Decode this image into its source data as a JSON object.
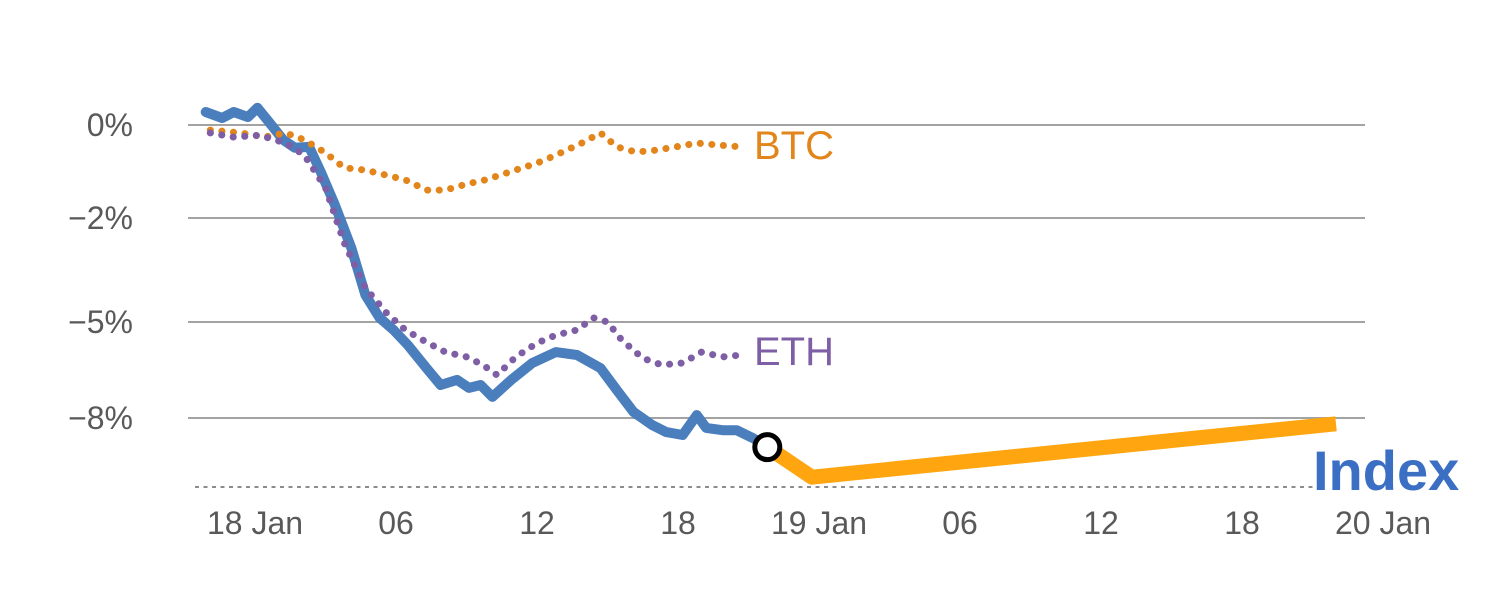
{
  "chart_data": {
    "type": "line",
    "title": "",
    "xlabel": "",
    "ylabel": "",
    "grid": true,
    "legend_position": "inline-labels",
    "x_unit": "hours since 18 Jan 00:00",
    "xlim": [
      -2.9,
      49
    ],
    "ylim_pct": [
      -10.3,
      0.9
    ],
    "y_scale_note": "non-linear: gridlines at 0, -2, -5, -8 percent are roughly equally spaced",
    "xticks": [
      {
        "t": 0,
        "label": "18 Jan"
      },
      {
        "t": 6,
        "label": "06"
      },
      {
        "t": 12,
        "label": "12"
      },
      {
        "t": 18,
        "label": "18"
      },
      {
        "t": 24,
        "label": "19 Jan"
      },
      {
        "t": 30,
        "label": "06"
      },
      {
        "t": 36,
        "label": "12"
      },
      {
        "t": 42,
        "label": "18"
      },
      {
        "t": 48,
        "label": "20 Jan"
      }
    ],
    "yticks": [
      {
        "pct": 0,
        "label": "0%"
      },
      {
        "pct": -2,
        "label": "−2%"
      },
      {
        "pct": -5,
        "label": "−5%"
      },
      {
        "pct": -8,
        "label": "−8%"
      }
    ],
    "series": [
      {
        "name": "Index",
        "label": "Index",
        "color": "#4a7ebc",
        "dash": "solid",
        "width": 10,
        "points": [
          [
            -2.1,
            0.28
          ],
          [
            -1.4,
            0.15
          ],
          [
            -0.9,
            0.28
          ],
          [
            -0.3,
            0.17
          ],
          [
            0.1,
            0.37
          ],
          [
            0.6,
            0.06
          ],
          [
            1.2,
            -0.32
          ],
          [
            1.7,
            -0.49
          ],
          [
            2.3,
            -0.47
          ],
          [
            2.8,
            -1.01
          ],
          [
            3.4,
            -1.72
          ],
          [
            4.1,
            -2.87
          ],
          [
            4.7,
            -4.22
          ],
          [
            5.3,
            -4.88
          ],
          [
            5.9,
            -5.25
          ],
          [
            6.5,
            -5.72
          ],
          [
            7.3,
            -6.44
          ],
          [
            7.9,
            -6.97
          ],
          [
            8.6,
            -6.81
          ],
          [
            9.1,
            -7.06
          ],
          [
            9.6,
            -6.97
          ],
          [
            10.1,
            -7.34
          ],
          [
            10.9,
            -6.81
          ],
          [
            11.8,
            -6.28
          ],
          [
            12.8,
            -5.94
          ],
          [
            13.7,
            -6.03
          ],
          [
            14.7,
            -6.44
          ],
          [
            15.4,
            -7.13
          ],
          [
            16.1,
            -7.81
          ],
          [
            16.9,
            -8.22
          ],
          [
            17.5,
            -8.44
          ],
          [
            18.2,
            -8.53
          ],
          [
            18.8,
            -7.91
          ],
          [
            19.2,
            -8.31
          ],
          [
            19.9,
            -8.38
          ],
          [
            20.5,
            -8.38
          ],
          [
            21.2,
            -8.63
          ],
          [
            21.8,
            -8.91
          ]
        ]
      },
      {
        "name": "Index projection",
        "label": "",
        "color": "#ffa50f",
        "dash": "solid",
        "width": 15,
        "cap": "butt",
        "points": [
          [
            21.8,
            -8.91
          ],
          [
            23.7,
            -9.85
          ],
          [
            46.0,
            -8.18
          ]
        ]
      },
      {
        "name": "BTC",
        "label": "BTC",
        "color": "#e2851b",
        "dash": "dotted",
        "width": 7,
        "points": [
          [
            -1.9,
            -0.11
          ],
          [
            -0.6,
            -0.17
          ],
          [
            0.4,
            -0.26
          ],
          [
            1.3,
            -0.17
          ],
          [
            2.1,
            -0.32
          ],
          [
            3.0,
            -0.6
          ],
          [
            3.8,
            -0.92
          ],
          [
            4.7,
            -0.97
          ],
          [
            5.6,
            -1.08
          ],
          [
            6.4,
            -1.18
          ],
          [
            7.3,
            -1.4
          ],
          [
            8.1,
            -1.4
          ],
          [
            9.0,
            -1.27
          ],
          [
            9.8,
            -1.18
          ],
          [
            10.9,
            -1.0
          ],
          [
            12.0,
            -0.82
          ],
          [
            12.8,
            -0.65
          ],
          [
            13.9,
            -0.39
          ],
          [
            14.7,
            -0.17
          ],
          [
            15.4,
            -0.47
          ],
          [
            16.2,
            -0.58
          ],
          [
            17.1,
            -0.54
          ],
          [
            17.9,
            -0.47
          ],
          [
            18.8,
            -0.39
          ],
          [
            19.7,
            -0.43
          ],
          [
            20.7,
            -0.47
          ]
        ]
      },
      {
        "name": "ETH",
        "label": "ETH",
        "color": "#7e5fa5",
        "dash": "dotted",
        "width": 7,
        "points": [
          [
            -1.9,
            -0.17
          ],
          [
            -0.9,
            -0.26
          ],
          [
            0.2,
            -0.22
          ],
          [
            1.3,
            -0.39
          ],
          [
            2.1,
            -0.65
          ],
          [
            3.0,
            -1.35
          ],
          [
            3.8,
            -2.72
          ],
          [
            4.7,
            -4.02
          ],
          [
            5.6,
            -4.74
          ],
          [
            6.4,
            -5.25
          ],
          [
            7.3,
            -5.63
          ],
          [
            8.1,
            -5.94
          ],
          [
            9.0,
            -6.09
          ],
          [
            9.7,
            -6.34
          ],
          [
            10.3,
            -6.66
          ],
          [
            11.1,
            -6.09
          ],
          [
            12.0,
            -5.66
          ],
          [
            12.8,
            -5.41
          ],
          [
            13.7,
            -5.25
          ],
          [
            14.4,
            -4.88
          ],
          [
            15.0,
            -5.0
          ],
          [
            15.6,
            -5.56
          ],
          [
            16.5,
            -6.13
          ],
          [
            17.3,
            -6.34
          ],
          [
            18.2,
            -6.28
          ],
          [
            19.0,
            -5.94
          ],
          [
            19.9,
            -6.09
          ],
          [
            20.7,
            -6.03
          ]
        ]
      }
    ],
    "marker": {
      "series": "Index",
      "t": 21.8,
      "pct": -8.91,
      "shape": "open-circle",
      "stroke": "#000000",
      "fill": "#ffffff"
    },
    "annotations": [
      {
        "text": "BTC",
        "color": "#e2851b"
      },
      {
        "text": "ETH",
        "color": "#7e5fa5"
      },
      {
        "text": "Index",
        "color": "#3b6fc4"
      }
    ],
    "colors": {
      "grid": "#a3a3a3",
      "axis_dashed": "#8c8c8c",
      "tick_text": "#595959",
      "background": "#ffffff"
    }
  }
}
